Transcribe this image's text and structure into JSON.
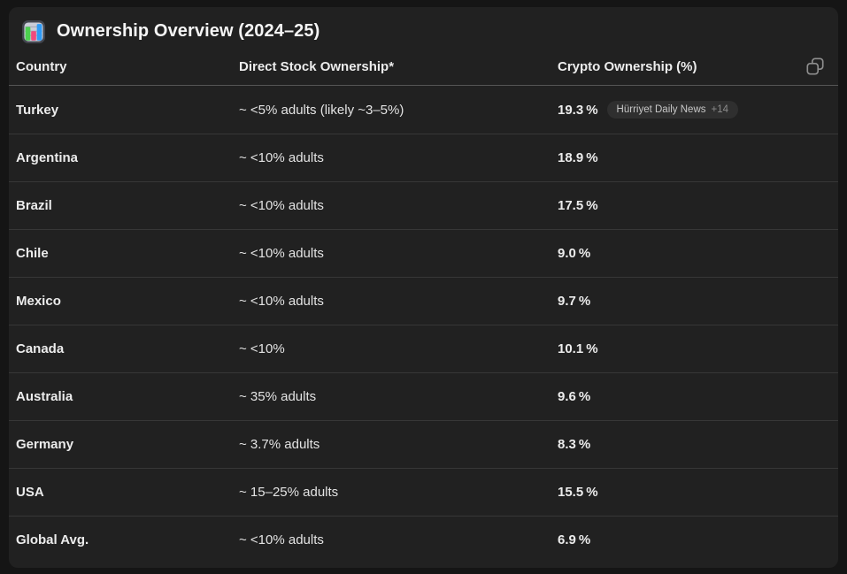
{
  "header": {
    "title": "Ownership Overview (2024–25)",
    "icon": "bar-chart-emoji"
  },
  "table": {
    "columns": [
      "Country",
      "Direct Stock Ownership*",
      "Crypto Ownership (%)"
    ],
    "copy_button": "copy-icon",
    "rows": [
      {
        "country": "Turkey",
        "stock": "~ <5% adults (likely ~3–5%)",
        "crypto": "19.3 %",
        "citation": {
          "source": "Hürriyet Daily News",
          "more_count": "+14"
        }
      },
      {
        "country": "Argentina",
        "stock": "~ <10% adults",
        "crypto": "18.9 %"
      },
      {
        "country": "Brazil",
        "stock": "~ <10% adults",
        "crypto": "17.5 %"
      },
      {
        "country": "Chile",
        "stock": "~ <10% adults",
        "crypto": "9.0 %"
      },
      {
        "country": "Mexico",
        "stock": "~ <10% adults",
        "crypto": "9.7 %"
      },
      {
        "country": "Canada",
        "stock": "~ <10%",
        "crypto": "10.1 %"
      },
      {
        "country": "Australia",
        "stock": "~ 35% adults",
        "crypto": "9.6 %"
      },
      {
        "country": "Germany",
        "stock": "~ 3.7% adults",
        "crypto": "8.3 %"
      },
      {
        "country": "USA",
        "stock": "~ 15–25% adults",
        "crypto": "15.5 %"
      },
      {
        "country": "Global Avg.",
        "stock": "~ <10% adults",
        "crypto": "6.9 %"
      }
    ]
  },
  "colors": {
    "card_background": "#212121",
    "page_edge": "#151515",
    "header_divider": "#555555",
    "row_divider": "#373737",
    "text_primary": "#ececec",
    "text_secondary": "#e3e3e3",
    "badge_background": "#2f2f2f",
    "badge_text": "#c8c8c8",
    "badge_count": "#8b8b8b",
    "copy_icon": "#8e8e8e",
    "emoji_green": "#4cd04f",
    "emoji_pink": "#f2497d",
    "emoji_blue": "#2e9bf7"
  }
}
